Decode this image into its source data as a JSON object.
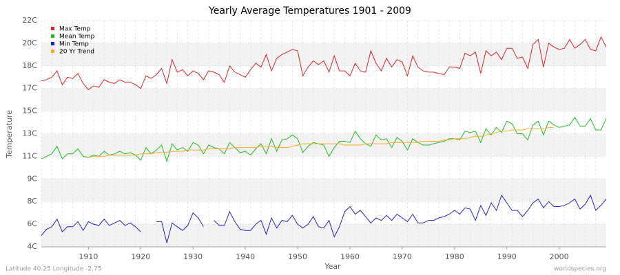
{
  "chart_data": {
    "type": "line",
    "title": "Yearly Average Temperatures 1901 - 2009",
    "x_label": "Year",
    "y_label": "Temperature",
    "footer_left": "Latitude 40.25 Longitude -2.75",
    "footer_right": "worldspecies.org",
    "legend": "top-left",
    "grid": true,
    "xlim": [
      1901,
      2009
    ],
    "xticks": [
      1910,
      1920,
      1930,
      1940,
      1950,
      1960,
      1970,
      1980,
      1990,
      2000
    ],
    "ylim": [
      4,
      22
    ],
    "yticks": [
      {
        "value": 4,
        "label": "4C"
      },
      {
        "value": 5.8,
        "label": "6C"
      },
      {
        "value": 7.6,
        "label": "8C"
      },
      {
        "value": 9.4,
        "label": "9C"
      },
      {
        "value": 11.2,
        "label": "11C"
      },
      {
        "value": 13,
        "label": "13C"
      },
      {
        "value": 14.8,
        "label": "15C"
      },
      {
        "value": 16.6,
        "label": "17C"
      },
      {
        "value": 18.4,
        "label": "18C"
      },
      {
        "value": 20.2,
        "label": "20C"
      },
      {
        "value": 22,
        "label": "22C"
      }
    ],
    "x": [
      1901,
      1902,
      1903,
      1904,
      1905,
      1906,
      1907,
      1908,
      1909,
      1910,
      1911,
      1912,
      1913,
      1914,
      1915,
      1916,
      1917,
      1918,
      1919,
      1920,
      1921,
      1922,
      1923,
      1924,
      1925,
      1926,
      1927,
      1928,
      1929,
      1930,
      1931,
      1932,
      1933,
      1934,
      1935,
      1936,
      1937,
      1938,
      1939,
      1940,
      1941,
      1942,
      1943,
      1944,
      1945,
      1946,
      1947,
      1948,
      1949,
      1950,
      1951,
      1952,
      1953,
      1954,
      1955,
      1956,
      1957,
      1958,
      1959,
      1960,
      1961,
      1962,
      1963,
      1964,
      1965,
      1966,
      1967,
      1968,
      1969,
      1970,
      1971,
      1972,
      1973,
      1974,
      1975,
      1976,
      1977,
      1978,
      1979,
      1980,
      1981,
      1982,
      1983,
      1984,
      1985,
      1986,
      1987,
      1988,
      1989,
      1990,
      1991,
      1992,
      1993,
      1994,
      1995,
      1996,
      1997,
      1998,
      1999,
      2000,
      2001,
      2002,
      2003,
      2004,
      2005,
      2006,
      2007,
      2008,
      2009
    ],
    "series": [
      {
        "name": "Max Temp",
        "color": "#dd2222",
        "values": [
          17.2,
          17.3,
          17.5,
          18.0,
          16.9,
          17.5,
          17.4,
          17.8,
          17.0,
          16.5,
          16.8,
          16.7,
          17.3,
          17.1,
          17.0,
          17.3,
          17.1,
          17.1,
          16.9,
          16.6,
          17.6,
          17.4,
          17.7,
          18.2,
          17.0,
          18.9,
          17.9,
          18.1,
          17.6,
          18.0,
          17.8,
          17.3,
          18.0,
          17.9,
          17.7,
          17.1,
          18.4,
          17.9,
          17.7,
          17.5,
          18.1,
          18.6,
          18.3,
          19.3,
          18.0,
          19.0,
          19.3,
          19.5,
          19.7,
          19.6,
          17.6,
          18.3,
          18.8,
          18.5,
          18.8,
          17.9,
          19.2,
          18.0,
          18.0,
          17.6,
          18.6,
          18.0,
          17.9,
          19.6,
          18.6,
          18.0,
          19.0,
          18.3,
          18.9,
          18.7,
          17.6,
          19.2,
          18.3,
          18.0,
          17.9,
          17.9,
          17.8,
          17.7,
          18.3,
          18.3,
          18.2,
          19.4,
          19.2,
          19.5,
          17.8,
          19.6,
          19.2,
          19.5,
          18.9,
          19.8,
          19.8,
          19.0,
          19.1,
          18.2,
          20.1,
          20.5,
          18.3,
          20.2,
          19.9,
          19.7,
          19.8,
          20.5,
          19.8,
          20.1,
          20.5,
          19.7,
          19.6,
          20.7,
          19.9
        ]
      },
      {
        "name": "Mean Temp",
        "color": "#22bb22",
        "values": [
          11.0,
          11.2,
          11.4,
          12.0,
          11.0,
          11.4,
          11.4,
          11.8,
          11.2,
          11.1,
          11.3,
          11.2,
          11.6,
          11.3,
          11.4,
          11.6,
          11.4,
          11.5,
          11.3,
          10.9,
          11.9,
          11.4,
          11.7,
          12.1,
          10.8,
          12.2,
          11.7,
          11.9,
          11.6,
          12.3,
          12.1,
          11.4,
          12.1,
          11.9,
          11.8,
          11.4,
          12.3,
          11.9,
          11.5,
          11.6,
          11.3,
          11.8,
          12.2,
          11.4,
          12.6,
          11.6,
          12.5,
          12.6,
          12.9,
          12.6,
          11.5,
          12.0,
          12.3,
          12.2,
          12.1,
          11.2,
          11.9,
          12.4,
          12.4,
          12.3,
          13.2,
          12.6,
          12.2,
          12.0,
          12.9,
          12.5,
          12.6,
          11.9,
          12.7,
          12.4,
          11.7,
          12.6,
          12.3,
          12.1,
          12.1,
          12.2,
          12.3,
          12.4,
          12.6,
          12.6,
          12.5,
          13.2,
          13.1,
          13.2,
          12.3,
          13.4,
          12.9,
          13.5,
          13.1,
          14.0,
          13.8,
          13.0,
          13.0,
          12.5,
          13.7,
          14.0,
          12.9,
          14.0,
          13.7,
          13.5,
          13.6,
          13.7,
          14.3,
          13.6,
          13.6,
          14.2,
          13.3,
          13.3,
          14.2
        ]
      },
      {
        "name": "Min Temp",
        "color": "#2222cc",
        "values": [
          4.9,
          5.4,
          5.6,
          6.2,
          5.2,
          5.6,
          5.6,
          6.0,
          5.3,
          6.0,
          5.8,
          5.7,
          6.2,
          5.7,
          5.9,
          6.1,
          5.7,
          5.9,
          5.6,
          5.2,
          null,
          null,
          6.0,
          6.0,
          4.3,
          5.9,
          5.6,
          5.3,
          5.7,
          6.7,
          6.3,
          5.6,
          null,
          6.1,
          5.7,
          5.7,
          6.8,
          6.0,
          5.4,
          5.3,
          5.3,
          5.8,
          6.1,
          5.0,
          6.3,
          5.5,
          6.1,
          6.0,
          6.5,
          5.8,
          5.5,
          5.8,
          6.4,
          5.6,
          5.5,
          6.1,
          4.8,
          5.6,
          6.8,
          7.2,
          6.6,
          6.9,
          6.4,
          5.9,
          6.3,
          6.1,
          6.5,
          6.1,
          6.6,
          6.3,
          6.0,
          6.6,
          5.9,
          5.9,
          6.1,
          6.1,
          6.3,
          6.4,
          6.6,
          6.9,
          6.6,
          7.1,
          7.0,
          6.1,
          7.3,
          6.5,
          7.5,
          6.9,
          8.1,
          7.5,
          6.9,
          6.9,
          6.4,
          6.9,
          7.5,
          7.8,
          7.1,
          7.6,
          7.2,
          7.2,
          7.3,
          7.5,
          7.8,
          7.0,
          7.4,
          8.1,
          6.9,
          7.3,
          7.8
        ]
      },
      {
        "name": "20 Yr Trend",
        "color": "#ffaa22",
        "values": [
          null,
          null,
          null,
          null,
          null,
          null,
          null,
          null,
          null,
          11.1,
          11.2,
          11.2,
          11.2,
          11.3,
          11.3,
          11.3,
          11.3,
          11.3,
          11.3,
          11.4,
          11.4,
          11.4,
          11.5,
          11.5,
          11.5,
          11.6,
          11.6,
          11.6,
          11.7,
          11.7,
          11.7,
          11.7,
          11.8,
          11.8,
          11.8,
          11.8,
          11.8,
          11.9,
          11.9,
          11.9,
          11.9,
          11.9,
          12.0,
          12.0,
          12.0,
          11.9,
          11.9,
          11.9,
          12.0,
          12.1,
          12.2,
          12.2,
          12.2,
          12.2,
          12.2,
          12.2,
          12.2,
          12.2,
          12.1,
          12.1,
          12.1,
          12.1,
          12.2,
          12.2,
          12.2,
          12.2,
          12.2,
          12.3,
          12.3,
          12.3,
          12.3,
          12.3,
          12.3,
          12.4,
          12.4,
          12.4,
          12.4,
          12.5,
          12.5,
          12.6,
          12.6,
          12.6,
          12.7,
          12.8,
          12.8,
          12.9,
          13.0,
          13.1,
          13.2,
          13.2,
          13.3,
          13.3,
          13.3,
          13.4,
          13.4,
          13.4,
          13.4,
          13.5,
          13.5,
          null,
          null,
          null,
          null,
          null,
          null,
          null,
          null,
          null,
          null
        ]
      }
    ]
  }
}
